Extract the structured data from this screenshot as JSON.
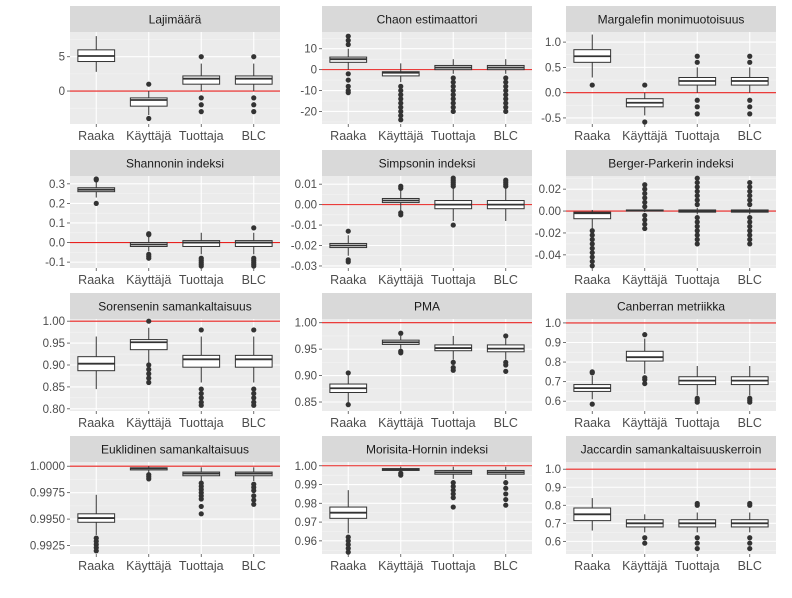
{
  "style": {
    "panel_bg": "#ebebeb",
    "strip_bg": "#d9d9d9",
    "grid_major": "#ffffff",
    "grid_minor": "#f4f4f4",
    "box_fill": "#ffffff",
    "box_line": "#333333",
    "ref_line": "#e8211f",
    "text": "#1a1a1a",
    "axis_text": "#4d4d4d"
  },
  "chart_data": [
    {
      "type": "box",
      "title": "Lajimäärä",
      "categories": [
        "Raaka",
        "Käyttäjä",
        "Tuottaja",
        "BLC"
      ],
      "ylim": [
        -4.8,
        8.6
      ],
      "yticks": [
        0,
        5
      ],
      "ytick_labels": [
        "0",
        "5"
      ],
      "reference_line": 0,
      "boxes": [
        {
          "q1": 4.3,
          "median": 5.1,
          "q3": 6.0,
          "whisker_low": 2.8,
          "whisker_high": 8.0,
          "outliers": []
        },
        {
          "q1": -2.2,
          "median": -1.3,
          "q3": -1.0,
          "whisker_low": -3.5,
          "whisker_high": 0.0,
          "outliers": [
            1,
            -4
          ]
        },
        {
          "q1": 1.0,
          "median": 1.8,
          "q3": 2.2,
          "whisker_low": 0.0,
          "whisker_high": 4.0,
          "outliers": [
            5,
            -1,
            -2,
            -3
          ]
        },
        {
          "q1": 1.0,
          "median": 1.8,
          "q3": 2.2,
          "whisker_low": 0.0,
          "whisker_high": 4.0,
          "outliers": [
            5,
            -1,
            -2,
            -3
          ]
        }
      ]
    },
    {
      "type": "box",
      "title": "Chaon estimaattori",
      "categories": [
        "Raaka",
        "Käyttäjä",
        "Tuottaja",
        "BLC"
      ],
      "ylim": [
        -26,
        18
      ],
      "yticks": [
        -20,
        -10,
        0,
        10
      ],
      "ytick_labels": [
        "-20",
        "-10",
        "0",
        "10"
      ],
      "reference_line": 0,
      "boxes": [
        {
          "q1": 3.5,
          "median": 5.0,
          "q3": 6.0,
          "whisker_low": 0.0,
          "whisker_high": 10.0,
          "outliers": [
            12,
            14,
            16,
            -2,
            -5,
            -8,
            -10,
            -11
          ]
        },
        {
          "q1": -3.0,
          "median": -1.5,
          "q3": -1.0,
          "whisker_low": -6.0,
          "whisker_high": 3.0,
          "outliers": [
            -8,
            -10,
            -12,
            -14,
            -16,
            -18,
            -20,
            -22,
            -24
          ]
        },
        {
          "q1": 0.0,
          "median": 1.0,
          "q3": 2.0,
          "whisker_low": -2.0,
          "whisker_high": 5.0,
          "outliers": [
            -4,
            -6,
            -8,
            -10,
            -12,
            -14,
            -16,
            -18,
            -20
          ]
        },
        {
          "q1": 0.0,
          "median": 1.0,
          "q3": 2.0,
          "whisker_low": -2.0,
          "whisker_high": 5.0,
          "outliers": [
            -4,
            -6,
            -8,
            -10,
            -12,
            -14,
            -16,
            -18,
            -20
          ]
        }
      ]
    },
    {
      "type": "box",
      "title": "Margalefin monimuotoisuus",
      "categories": [
        "Raaka",
        "Käyttäjä",
        "Tuottaja",
        "BLC"
      ],
      "ylim": [
        -0.62,
        1.2
      ],
      "yticks": [
        -0.5,
        0.0,
        0.5,
        1.0
      ],
      "ytick_labels": [
        "-0.5",
        "0.0",
        "0.5",
        "1.0"
      ],
      "reference_line": 0,
      "boxes": [
        {
          "q1": 0.6,
          "median": 0.72,
          "q3": 0.85,
          "whisker_low": 0.3,
          "whisker_high": 1.15,
          "outliers": [
            0.15
          ]
        },
        {
          "q1": -0.28,
          "median": -0.2,
          "q3": -0.12,
          "whisker_low": -0.45,
          "whisker_high": 0.0,
          "outliers": [
            0.15,
            -0.58
          ]
        },
        {
          "q1": 0.15,
          "median": 0.23,
          "q3": 0.3,
          "whisker_low": 0.0,
          "whisker_high": 0.5,
          "outliers": [
            0.72,
            0.6,
            -0.15,
            -0.28,
            -0.42
          ]
        },
        {
          "q1": 0.15,
          "median": 0.23,
          "q3": 0.3,
          "whisker_low": 0.0,
          "whisker_high": 0.5,
          "outliers": [
            0.72,
            0.6,
            -0.15,
            -0.28,
            -0.42
          ]
        }
      ]
    },
    {
      "type": "box",
      "title": "Shannonin indeksi",
      "categories": [
        "Raaka",
        "Käyttäjä",
        "Tuottaja",
        "BLC"
      ],
      "ylim": [
        -0.13,
        0.34
      ],
      "yticks": [
        -0.1,
        0.0,
        0.1,
        0.2,
        0.3
      ],
      "ytick_labels": [
        "-0.1",
        "0.0",
        "0.1",
        "0.2",
        "0.3"
      ],
      "reference_line": 0,
      "boxes": [
        {
          "q1": 0.26,
          "median": 0.27,
          "q3": 0.28,
          "whisker_low": 0.23,
          "whisker_high": 0.31,
          "outliers": [
            0.32,
            0.325,
            0.2
          ]
        },
        {
          "q1": -0.02,
          "median": -0.01,
          "q3": 0.0,
          "whisker_low": -0.045,
          "whisker_high": 0.03,
          "outliers": [
            0.04,
            0.045,
            -0.06,
            -0.07,
            -0.08
          ]
        },
        {
          "q1": -0.02,
          "median": 0.0,
          "q3": 0.01,
          "whisker_low": -0.06,
          "whisker_high": 0.05,
          "outliers": [
            -0.08,
            -0.09,
            -0.1,
            -0.11,
            -0.12
          ]
        },
        {
          "q1": -0.02,
          "median": 0.0,
          "q3": 0.01,
          "whisker_low": -0.06,
          "whisker_high": 0.05,
          "outliers": [
            0.075,
            -0.08,
            -0.09,
            -0.1,
            -0.11,
            -0.12
          ]
        }
      ]
    },
    {
      "type": "box",
      "title": "Simpsonin indeksi",
      "categories": [
        "Raaka",
        "Käyttäjä",
        "Tuottaja",
        "BLC"
      ],
      "ylim": [
        -0.031,
        0.014
      ],
      "yticks": [
        -0.03,
        -0.02,
        -0.01,
        0.0,
        0.01
      ],
      "ytick_labels": [
        "-0.03",
        "-0.02",
        "-0.01",
        "0.00",
        "0.01"
      ],
      "reference_line": 0,
      "boxes": [
        {
          "q1": -0.021,
          "median": -0.02,
          "q3": -0.019,
          "whisker_low": -0.025,
          "whisker_high": -0.015,
          "outliers": [
            -0.013,
            -0.027,
            -0.028
          ]
        },
        {
          "q1": 0.001,
          "median": 0.002,
          "q3": 0.003,
          "whisker_low": -0.003,
          "whisker_high": 0.007,
          "outliers": [
            0.008,
            0.009,
            -0.004,
            -0.005
          ]
        },
        {
          "q1": -0.002,
          "median": 0.0,
          "q3": 0.002,
          "whisker_low": -0.008,
          "whisker_high": 0.008,
          "outliers": [
            0.009,
            0.01,
            0.011,
            0.012,
            0.013,
            -0.01
          ]
        },
        {
          "q1": -0.002,
          "median": 0.0,
          "q3": 0.002,
          "whisker_low": -0.008,
          "whisker_high": 0.008,
          "outliers": [
            0.009,
            0.01,
            0.011,
            0.012
          ]
        }
      ]
    },
    {
      "type": "box",
      "title": "Berger-Parkerin indeksi",
      "categories": [
        "Raaka",
        "Käyttäjä",
        "Tuottaja",
        "BLC"
      ],
      "ylim": [
        -0.052,
        0.032
      ],
      "yticks": [
        -0.04,
        -0.02,
        0.0,
        0.02
      ],
      "ytick_labels": [
        "-0.04",
        "-0.02",
        "0.00",
        "0.02"
      ],
      "reference_line": 0,
      "boxes": [
        {
          "q1": -0.007,
          "median": -0.002,
          "q3": -0.001,
          "whisker_low": -0.016,
          "whisker_high": 0.001,
          "outliers": [
            -0.018,
            -0.022,
            -0.026,
            -0.03,
            -0.034,
            -0.038,
            -0.042,
            -0.046,
            -0.05
          ]
        },
        {
          "q1": 0.0,
          "median": 0.0005,
          "q3": 0.001,
          "whisker_low": -0.001,
          "whisker_high": 0.002,
          "outliers": [
            0.004,
            0.008,
            0.012,
            0.016,
            0.02,
            0.024,
            -0.004,
            -0.008,
            -0.012,
            -0.016
          ]
        },
        {
          "q1": -0.001,
          "median": 0.0,
          "q3": 0.001,
          "whisker_low": -0.003,
          "whisker_high": 0.003,
          "outliers": [
            0.006,
            0.01,
            0.014,
            0.018,
            0.022,
            0.026,
            0.03,
            -0.006,
            -0.01,
            -0.014,
            -0.018,
            -0.022,
            -0.026,
            -0.03
          ]
        },
        {
          "q1": -0.001,
          "median": 0.0,
          "q3": 0.001,
          "whisker_low": -0.003,
          "whisker_high": 0.003,
          "outliers": [
            0.006,
            0.01,
            0.014,
            0.018,
            0.022,
            0.026,
            -0.006,
            -0.01,
            -0.014,
            -0.018,
            -0.022,
            -0.026,
            -0.03
          ]
        }
      ]
    },
    {
      "type": "box",
      "title": "Sorensenin samankaltaisuus",
      "categories": [
        "Raaka",
        "Käyttäjä",
        "Tuottaja",
        "BLC"
      ],
      "ylim": [
        0.795,
        1.005
      ],
      "yticks": [
        0.8,
        0.85,
        0.9,
        0.95,
        1.0
      ],
      "ytick_labels": [
        "0.80",
        "0.85",
        "0.90",
        "0.95",
        "1.00"
      ],
      "reference_line": 1.0,
      "boxes": [
        {
          "q1": 0.887,
          "median": 0.903,
          "q3": 0.919,
          "whisker_low": 0.845,
          "whisker_high": 0.965,
          "outliers": []
        },
        {
          "q1": 0.935,
          "median": 0.952,
          "q3": 0.958,
          "whisker_low": 0.905,
          "whisker_high": 0.985,
          "outliers": [
            1.0,
            0.9,
            0.89,
            0.88,
            0.87,
            0.86
          ]
        },
        {
          "q1": 0.895,
          "median": 0.913,
          "q3": 0.922,
          "whisker_low": 0.86,
          "whisker_high": 0.965,
          "outliers": [
            0.98,
            0.845,
            0.835,
            0.825,
            0.815,
            0.808
          ]
        },
        {
          "q1": 0.895,
          "median": 0.913,
          "q3": 0.922,
          "whisker_low": 0.86,
          "whisker_high": 0.965,
          "outliers": [
            0.98,
            0.845,
            0.835,
            0.825,
            0.815,
            0.808
          ]
        }
      ]
    },
    {
      "type": "box",
      "title": "PMA",
      "categories": [
        "Raaka",
        "Käyttäjä",
        "Tuottaja",
        "BLC"
      ],
      "ylim": [
        0.833,
        1.007
      ],
      "yticks": [
        0.85,
        0.9,
        0.95,
        1.0
      ],
      "ytick_labels": [
        "0.85",
        "0.90",
        "0.95",
        "1.00"
      ],
      "reference_line": 1.0,
      "boxes": [
        {
          "q1": 0.868,
          "median": 0.876,
          "q3": 0.884,
          "whisker_low": 0.85,
          "whisker_high": 0.9,
          "outliers": [
            0.905,
            0.845
          ]
        },
        {
          "q1": 0.959,
          "median": 0.963,
          "q3": 0.967,
          "whisker_low": 0.951,
          "whisker_high": 0.975,
          "outliers": [
            0.98,
            0.946,
            0.943
          ]
        },
        {
          "q1": 0.947,
          "median": 0.952,
          "q3": 0.958,
          "whisker_low": 0.93,
          "whisker_high": 0.975,
          "outliers": [
            0.925,
            0.915,
            0.91
          ]
        },
        {
          "q1": 0.945,
          "median": 0.951,
          "q3": 0.958,
          "whisker_low": 0.93,
          "whisker_high": 0.97,
          "outliers": [
            0.975,
            0.925,
            0.92,
            0.908
          ]
        }
      ]
    },
    {
      "type": "box",
      "title": "Canberran metriikka",
      "categories": [
        "Raaka",
        "Käyttäjä",
        "Tuottaja",
        "BLC"
      ],
      "ylim": [
        0.55,
        1.02
      ],
      "yticks": [
        0.6,
        0.7,
        0.8,
        0.9,
        1.0
      ],
      "ytick_labels": [
        "0.6",
        "0.7",
        "0.8",
        "0.9",
        "1.0"
      ],
      "reference_line": 1.0,
      "boxes": [
        {
          "q1": 0.65,
          "median": 0.667,
          "q3": 0.685,
          "whisker_low": 0.61,
          "whisker_high": 0.73,
          "outliers": [
            0.745,
            0.75,
            0.585
          ]
        },
        {
          "q1": 0.805,
          "median": 0.825,
          "q3": 0.855,
          "whisker_low": 0.74,
          "whisker_high": 0.92,
          "outliers": [
            0.94,
            0.72,
            0.71,
            0.69
          ]
        },
        {
          "q1": 0.685,
          "median": 0.705,
          "q3": 0.725,
          "whisker_low": 0.63,
          "whisker_high": 0.78,
          "outliers": [
            0.615,
            0.605,
            0.595
          ]
        },
        {
          "q1": 0.685,
          "median": 0.705,
          "q3": 0.725,
          "whisker_low": 0.63,
          "whisker_high": 0.78,
          "outliers": [
            0.615,
            0.605,
            0.595
          ]
        }
      ]
    },
    {
      "type": "box",
      "title": "Euklidinen samankaltaisuus",
      "categories": [
        "Raaka",
        "Käyttäjä",
        "Tuottaja",
        "BLC"
      ],
      "ylim": [
        0.9917,
        1.0004
      ],
      "yticks": [
        0.9925,
        0.995,
        0.9975,
        1.0
      ],
      "ytick_labels": [
        "0.9925",
        "0.9950",
        "0.9975",
        "1.0000"
      ],
      "reference_line": 1.0,
      "boxes": [
        {
          "q1": 0.9947,
          "median": 0.9951,
          "q3": 0.9955,
          "whisker_low": 0.9935,
          "whisker_high": 0.9973,
          "outliers": [
            0.9932,
            0.9929,
            0.9926,
            0.9923,
            0.992
          ]
        },
        {
          "q1": 0.99965,
          "median": 0.9998,
          "q3": 0.99985,
          "whisker_low": 0.9993,
          "whisker_high": 1.0,
          "outliers": [
            0.9992,
            0.999,
            0.9988
          ]
        },
        {
          "q1": 0.9991,
          "median": 0.9993,
          "q3": 0.99945,
          "whisker_low": 0.9986,
          "whisker_high": 0.9999,
          "outliers": [
            0.9984,
            0.9981,
            0.9978,
            0.9975,
            0.9972,
            0.9969,
            0.9962,
            0.9955
          ]
        },
        {
          "q1": 0.9991,
          "median": 0.9993,
          "q3": 0.99945,
          "whisker_low": 0.9986,
          "whisker_high": 0.9999,
          "outliers": [
            0.9983,
            0.998,
            0.9977,
            0.9972,
            0.9968,
            0.9964
          ]
        }
      ]
    },
    {
      "type": "box",
      "title": "Morisita-Hornin indeksi",
      "categories": [
        "Raaka",
        "Käyttäjä",
        "Tuottaja",
        "BLC"
      ],
      "ylim": [
        0.953,
        1.002
      ],
      "yticks": [
        0.96,
        0.97,
        0.98,
        0.99,
        1.0
      ],
      "ytick_labels": [
        "0.96",
        "0.97",
        "0.98",
        "0.99",
        "1.00"
      ],
      "reference_line": 1.0,
      "boxes": [
        {
          "q1": 0.972,
          "median": 0.975,
          "q3": 0.978,
          "whisker_low": 0.964,
          "whisker_high": 0.987,
          "outliers": [
            0.962,
            0.96,
            0.958,
            0.956,
            0.954
          ]
        },
        {
          "q1": 0.9975,
          "median": 0.998,
          "q3": 0.9985,
          "whisker_low": 0.9965,
          "whisker_high": 0.9995,
          "outliers": [
            0.996,
            0.995
          ]
        },
        {
          "q1": 0.9955,
          "median": 0.9965,
          "q3": 0.9975,
          "whisker_low": 0.993,
          "whisker_high": 0.9995,
          "outliers": [
            0.991,
            0.989,
            0.987,
            0.985,
            0.983,
            0.978
          ]
        },
        {
          "q1": 0.9955,
          "median": 0.9965,
          "q3": 0.9975,
          "whisker_low": 0.993,
          "whisker_high": 0.9995,
          "outliers": [
            0.991,
            0.988,
            0.985,
            0.982,
            0.979
          ]
        }
      ]
    },
    {
      "type": "box",
      "title": "Jaccardin samankaltaisuuskerroin",
      "categories": [
        "Raaka",
        "Käyttäjä",
        "Tuottaja",
        "BLC"
      ],
      "ylim": [
        0.53,
        1.04
      ],
      "yticks": [
        0.6,
        0.7,
        0.8,
        0.9,
        1.0
      ],
      "ytick_labels": [
        "0.6",
        "0.7",
        "0.8",
        "0.9",
        "1.0"
      ],
      "reference_line": 1.0,
      "boxes": [
        {
          "q1": 0.715,
          "median": 0.75,
          "q3": 0.785,
          "whisker_low": 0.66,
          "whisker_high": 0.84,
          "outliers": []
        },
        {
          "q1": 0.68,
          "median": 0.7,
          "q3": 0.72,
          "whisker_low": 0.65,
          "whisker_high": 0.75,
          "outliers": [
            0.62,
            0.59
          ]
        },
        {
          "q1": 0.68,
          "median": 0.7,
          "q3": 0.72,
          "whisker_low": 0.65,
          "whisker_high": 0.76,
          "outliers": [
            0.8,
            0.81,
            0.62,
            0.59,
            0.56
          ]
        },
        {
          "q1": 0.68,
          "median": 0.7,
          "q3": 0.72,
          "whisker_low": 0.65,
          "whisker_high": 0.76,
          "outliers": [
            0.8,
            0.81,
            0.62,
            0.59,
            0.56
          ]
        }
      ]
    }
  ]
}
